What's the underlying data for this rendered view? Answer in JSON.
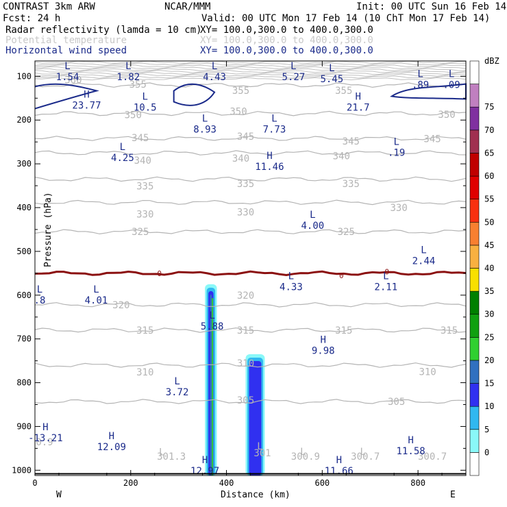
{
  "header": {
    "line1_left": "CONTRAST  3km ARW",
    "line1_mid": "NCAR/MMM",
    "line1_right": "Init: 00 UTC Sun 16 Feb 14",
    "line2_left": "Fcst:    24 h",
    "line2_right": "Valid: 00 UTC Mon 17 Feb 14 (10 ChT Mon 17 Feb 14)",
    "fields": [
      {
        "name": "Radar reflectivity (lamda = 10 cm)",
        "xy": "XY= 100.0,300.0 to 400.0,300.0",
        "color": "#000000"
      },
      {
        "name": "Potential temperature",
        "xy": "XY= 100.0,300.0 to 400.0,300.0",
        "color": "#c8c8c8"
      },
      {
        "name": "Horizontal wind speed",
        "xy": "XY= 100.0,300.0 to 400.0,300.0",
        "color": "#1a2a8a"
      }
    ]
  },
  "chart_data": {
    "type": "cross-section",
    "xlabel": "Distance (km)",
    "ylabel": "Pressure (hPa)",
    "xlim": [
      0,
      900
    ],
    "ylim": [
      1012,
      65
    ],
    "x_ticks": [
      0,
      200,
      400,
      600,
      800
    ],
    "y_ticks": [
      100,
      200,
      300,
      400,
      500,
      600,
      700,
      800,
      900,
      1000
    ],
    "endpoints": {
      "left": "W",
      "right": "E"
    },
    "colorbar": {
      "title": "dBZ",
      "levels": [
        0,
        5,
        10,
        15,
        20,
        25,
        30,
        35,
        40,
        45,
        50,
        55,
        60,
        65,
        70,
        75
      ],
      "colors": [
        "#ffffff",
        "#8af8f8",
        "#30b8f0",
        "#3030f0",
        "#3070c0",
        "#30d030",
        "#10a010",
        "#008000",
        "#f8e000",
        "#f8b040",
        "#f88030",
        "#f83010",
        "#e00000",
        "#c00000",
        "#a03050",
        "#8030a0",
        "#c080c0",
        "#ffffff"
      ]
    },
    "theta_contours": [
      {
        "value": 355,
        "p": 120
      },
      {
        "value": 350,
        "p": 185
      },
      {
        "value": 345,
        "p": 242
      },
      {
        "value": 340,
        "p": 275
      },
      {
        "value": 335,
        "p": 335
      },
      {
        "value": 330,
        "p": 388
      },
      {
        "value": 325,
        "p": 455
      },
      {
        "value": 320,
        "p": 622
      },
      {
        "value": 315,
        "p": 680
      },
      {
        "value": 310,
        "p": 760
      },
      {
        "value": 305,
        "p": 843
      }
    ],
    "theta_labels": [
      {
        "text": "355",
        "x": 215,
        "p": 118
      },
      {
        "text": "355",
        "x": 430,
        "p": 132
      },
      {
        "text": "355",
        "x": 645,
        "p": 132
      },
      {
        "text": "360",
        "x": 80,
        "p": 108
      },
      {
        "text": "350",
        "x": 205,
        "p": 188
      },
      {
        "text": "350",
        "x": 425,
        "p": 180
      },
      {
        "text": "350",
        "x": 860,
        "p": 187
      },
      {
        "text": "345",
        "x": 220,
        "p": 240
      },
      {
        "text": "345",
        "x": 440,
        "p": 237
      },
      {
        "text": "345",
        "x": 660,
        "p": 248
      },
      {
        "text": "345",
        "x": 830,
        "p": 243
      },
      {
        "text": "340",
        "x": 225,
        "p": 292
      },
      {
        "text": "340",
        "x": 430,
        "p": 287
      },
      {
        "text": "340",
        "x": 640,
        "p": 282
      },
      {
        "text": "335",
        "x": 230,
        "p": 351
      },
      {
        "text": "335",
        "x": 440,
        "p": 345
      },
      {
        "text": "335",
        "x": 660,
        "p": 345
      },
      {
        "text": "330",
        "x": 230,
        "p": 415
      },
      {
        "text": "330",
        "x": 440,
        "p": 410
      },
      {
        "text": "330",
        "x": 760,
        "p": 400
      },
      {
        "text": "325",
        "x": 220,
        "p": 455
      },
      {
        "text": "325",
        "x": 650,
        "p": 455
      },
      {
        "text": "320",
        "x": 180,
        "p": 622
      },
      {
        "text": "320",
        "x": 440,
        "p": 600
      },
      {
        "text": "315",
        "x": 230,
        "p": 680
      },
      {
        "text": "315",
        "x": 440,
        "p": 680
      },
      {
        "text": "315",
        "x": 645,
        "p": 680
      },
      {
        "text": "315",
        "x": 865,
        "p": 680
      },
      {
        "text": "310",
        "x": 230,
        "p": 776
      },
      {
        "text": "310",
        "x": 440,
        "p": 755
      },
      {
        "text": "310",
        "x": 820,
        "p": 775
      },
      {
        "text": "305",
        "x": 440,
        "p": 840
      },
      {
        "text": "305",
        "x": 755,
        "p": 843
      },
      {
        "text": "0.9",
        "x": 20,
        "p": 935
      },
      {
        "text": "301.3",
        "x": 285,
        "p": 968
      },
      {
        "text": "301",
        "x": 475,
        "p": 960
      },
      {
        "text": "300.9",
        "x": 565,
        "p": 968
      },
      {
        "text": "300.7",
        "x": 690,
        "p": 968
      },
      {
        "text": "300.7",
        "x": 830,
        "p": 968
      },
      {
        "text": "L",
        "x": 265,
        "p": 958
      },
      {
        "text": "L",
        "x": 470,
        "p": 945
      },
      {
        "text": "L",
        "x": 560,
        "p": 957
      },
      {
        "text": "L",
        "x": 685,
        "p": 957
      }
    ],
    "freezing_level": {
      "label": "0",
      "p": 550
    },
    "freezing_labels": [
      {
        "text": "0",
        "x": 260,
        "p": 550
      },
      {
        "text": "0",
        "x": 640,
        "p": 555
      },
      {
        "text": "0",
        "x": 735,
        "p": 546
      }
    ],
    "wind_extrema": [
      {
        "type": "L",
        "value": "1.54",
        "x": 68,
        "p": 90
      },
      {
        "type": "L",
        "value": "1.82",
        "x": 195,
        "p": 90
      },
      {
        "type": "L",
        "value": "4.43",
        "x": 375,
        "p": 90
      },
      {
        "type": "L",
        "value": "5.27",
        "x": 540,
        "p": 90
      },
      {
        "type": "L",
        "value": "5.45",
        "x": 620,
        "p": 95
      },
      {
        "type": "L",
        "value": ".89",
        "x": 805,
        "p": 108
      },
      {
        "type": "L",
        "value": ".09",
        "x": 870,
        "p": 108
      },
      {
        "type": "H",
        "value": "23.77",
        "x": 108,
        "p": 155
      },
      {
        "type": "L",
        "value": "10.5",
        "x": 230,
        "p": 160
      },
      {
        "type": "H",
        "value": "21.7",
        "x": 675,
        "p": 160
      },
      {
        "type": "L",
        "value": "8.93",
        "x": 355,
        "p": 210
      },
      {
        "type": "L",
        "value": "7.73",
        "x": 500,
        "p": 210
      },
      {
        "type": "L",
        "value": ".19",
        "x": 755,
        "p": 263
      },
      {
        "type": "L",
        "value": "4.25",
        "x": 183,
        "p": 275
      },
      {
        "type": "H",
        "value": "11.46",
        "x": 490,
        "p": 295
      },
      {
        "type": "L",
        "value": "4.00",
        "x": 580,
        "p": 430
      },
      {
        "type": "L",
        "value": "2.44",
        "x": 812,
        "p": 510
      },
      {
        "type": "L",
        "value": "4.33",
        "x": 535,
        "p": 570
      },
      {
        "type": "L",
        "value": "2.11",
        "x": 733,
        "p": 570
      },
      {
        "type": "L",
        "value": ".8",
        "x": 10,
        "p": 600
      },
      {
        "type": "L",
        "value": "4.01",
        "x": 128,
        "p": 600
      },
      {
        "type": "L",
        "value": "5.88",
        "x": 370,
        "p": 660
      },
      {
        "type": "H",
        "value": "9.98",
        "x": 602,
        "p": 715
      },
      {
        "type": "L",
        "value": "3.72",
        "x": 297,
        "p": 810
      },
      {
        "type": "H",
        "value": "-13.21",
        "x": 22,
        "p": 915
      },
      {
        "type": "H",
        "value": "12.09",
        "x": 160,
        "p": 935
      },
      {
        "type": "H",
        "value": "11.58",
        "x": 785,
        "p": 945
      },
      {
        "type": "H",
        "value": "12.97",
        "x": 355,
        "p": 990
      },
      {
        "type": "H",
        "value": "11.66",
        "x": 635,
        "p": 990
      }
    ],
    "reflectivity_cells": [
      {
        "x0": 355,
        "x1": 380,
        "ptop": 575,
        "pbot": 1012,
        "max_dbz": 20
      },
      {
        "x0": 440,
        "x1": 480,
        "ptop": 735,
        "pbot": 1012,
        "max_dbz": 10
      }
    ]
  }
}
